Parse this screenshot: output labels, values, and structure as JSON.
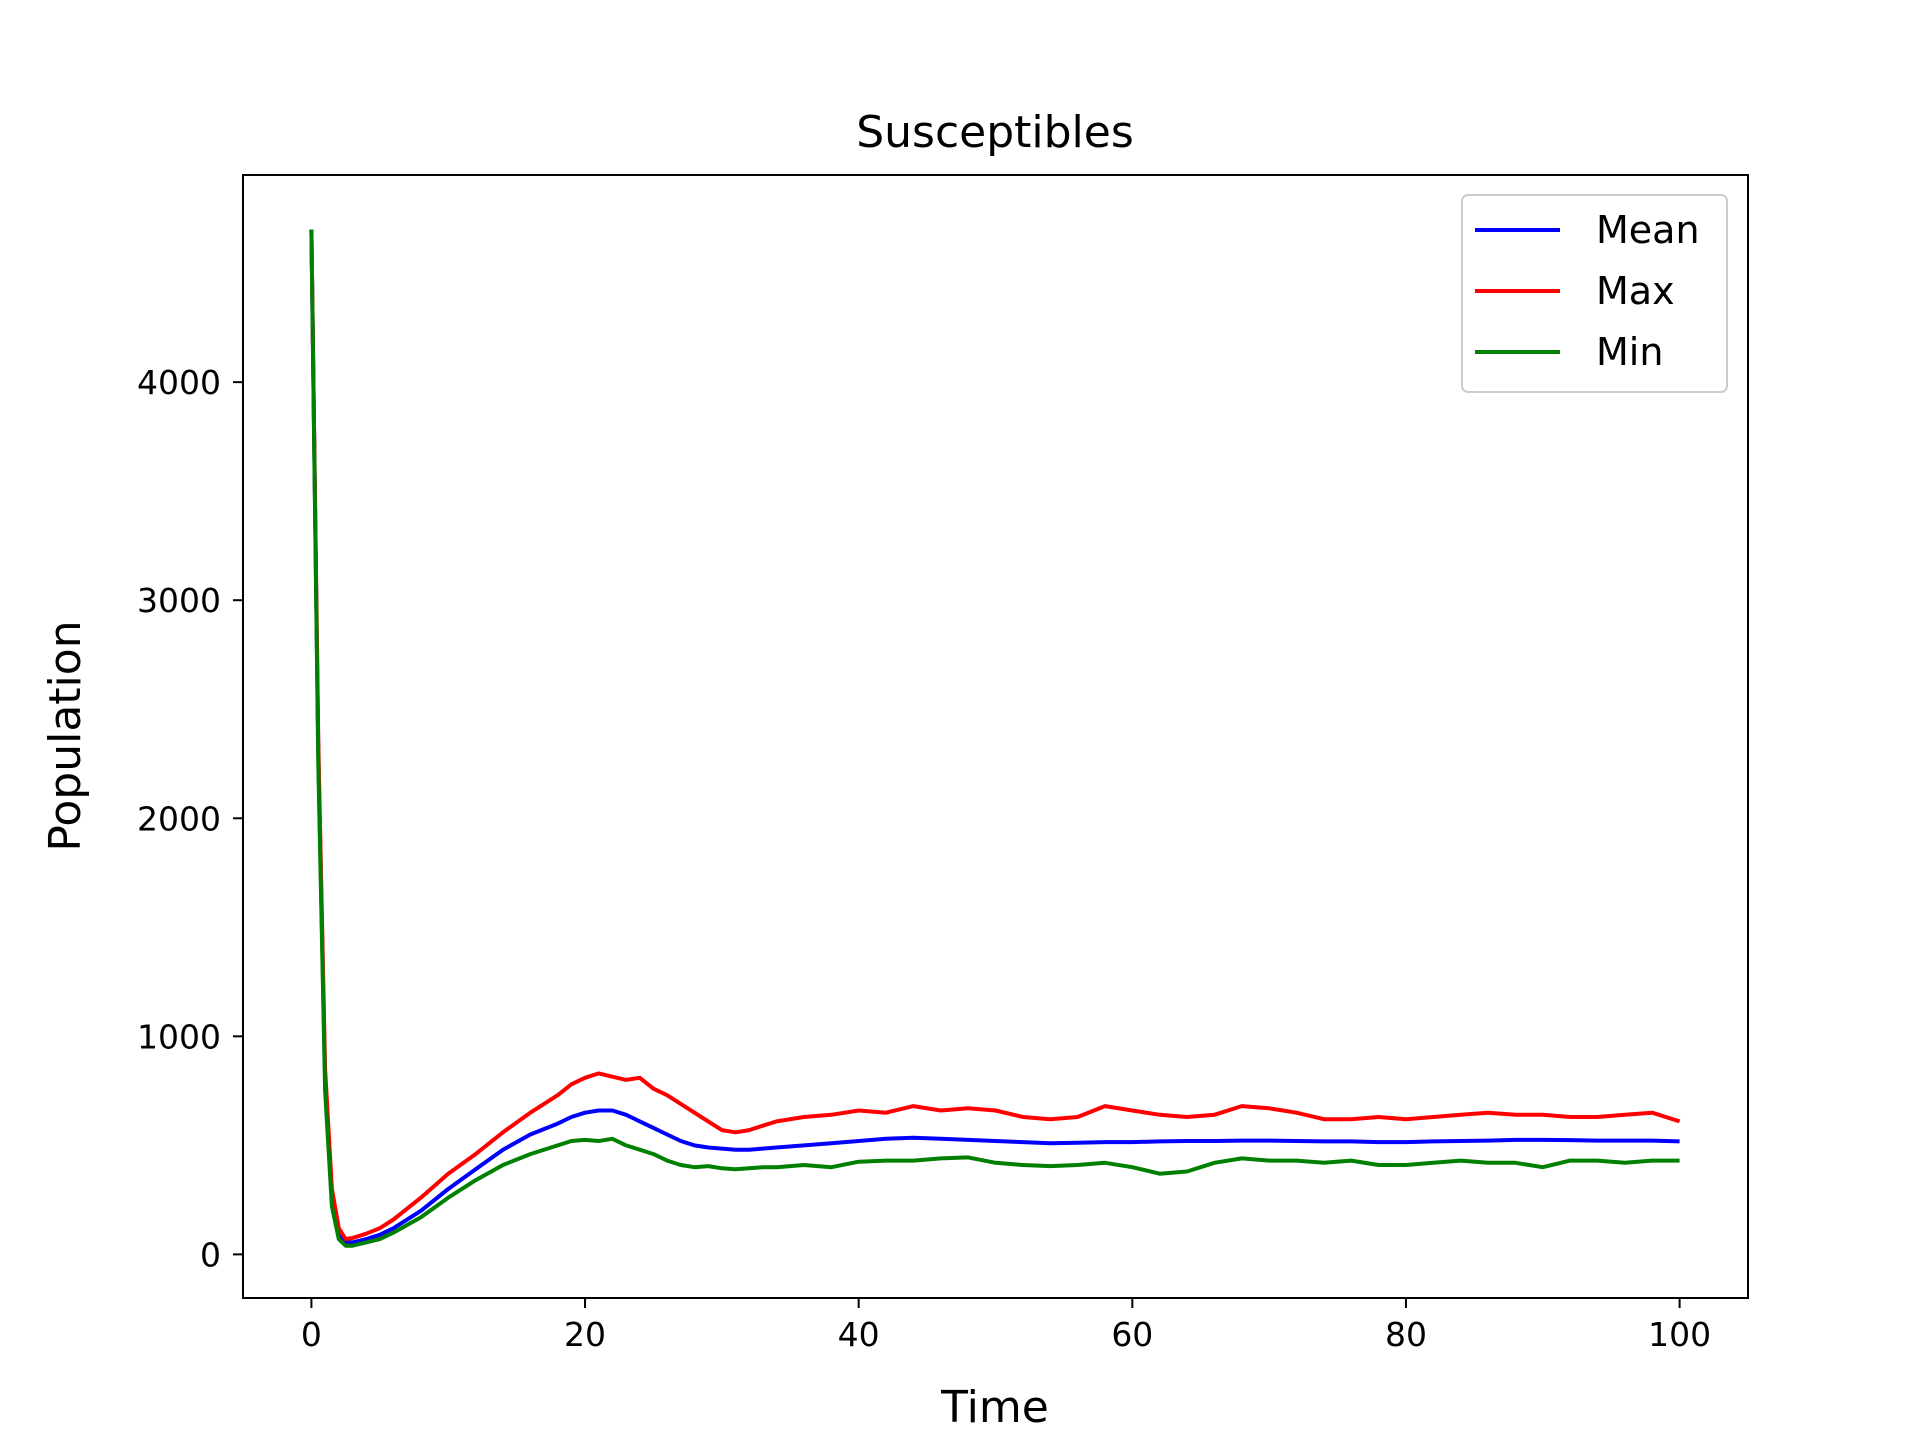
{
  "chart_data": {
    "type": "line",
    "title": "Susceptibles",
    "xlabel": "Time",
    "ylabel": "Population",
    "xlim": [
      -5,
      105
    ],
    "ylim": [
      -200,
      4950
    ],
    "xticks": [
      0,
      20,
      40,
      60,
      80,
      100
    ],
    "yticks": [
      0,
      1000,
      2000,
      3000,
      4000
    ],
    "grid": false,
    "legend_position": "top-right",
    "x": [
      0,
      0.5,
      1,
      1.5,
      2,
      2.5,
      3,
      4,
      5,
      6,
      8,
      10,
      12,
      14,
      16,
      18,
      19,
      20,
      21,
      22,
      23,
      24,
      25,
      26,
      27,
      28,
      29,
      30,
      31,
      32,
      33,
      34,
      36,
      38,
      40,
      42,
      44,
      46,
      48,
      50,
      52,
      54,
      56,
      58,
      60,
      62,
      64,
      66,
      68,
      70,
      72,
      74,
      76,
      78,
      80,
      82,
      84,
      86,
      88,
      90,
      92,
      94,
      96,
      98,
      100
    ],
    "series": [
      {
        "name": "Mean",
        "color": "#0000ff",
        "values": [
          4700,
          2300,
          800,
          250,
          90,
          55,
          55,
          70,
          90,
          120,
          200,
          300,
          390,
          480,
          550,
          600,
          630,
          650,
          660,
          660,
          640,
          610,
          580,
          550,
          520,
          500,
          490,
          485,
          480,
          480,
          485,
          490,
          500,
          510,
          520,
          530,
          535,
          530,
          525,
          520,
          515,
          510,
          512,
          515,
          515,
          518,
          520,
          520,
          522,
          522,
          520,
          518,
          518,
          515,
          515,
          518,
          520,
          522,
          525,
          525,
          524,
          522,
          522,
          522,
          518
        ]
      },
      {
        "name": "Max",
        "color": "#ff0000",
        "values": [
          4700,
          2350,
          850,
          300,
          120,
          70,
          75,
          95,
          120,
          160,
          260,
          370,
          460,
          560,
          650,
          730,
          780,
          810,
          830,
          815,
          800,
          810,
          760,
          730,
          690,
          650,
          610,
          570,
          560,
          570,
          590,
          610,
          630,
          640,
          660,
          650,
          680,
          660,
          670,
          660,
          630,
          620,
          630,
          680,
          660,
          640,
          630,
          640,
          680,
          670,
          650,
          620,
          620,
          630,
          620,
          630,
          640,
          650,
          640,
          640,
          630,
          630,
          640,
          650,
          610
        ]
      },
      {
        "name": "Min",
        "color": "#008000",
        "values": [
          4700,
          2250,
          750,
          220,
          70,
          40,
          40,
          55,
          70,
          100,
          170,
          260,
          340,
          410,
          460,
          500,
          520,
          525,
          520,
          530,
          500,
          480,
          460,
          430,
          410,
          400,
          405,
          395,
          390,
          395,
          400,
          400,
          410,
          400,
          425,
          430,
          430,
          440,
          445,
          420,
          410,
          405,
          410,
          420,
          400,
          370,
          380,
          420,
          440,
          430,
          430,
          420,
          430,
          410,
          410,
          420,
          430,
          420,
          420,
          400,
          430,
          430,
          420,
          430,
          430
        ]
      }
    ]
  }
}
